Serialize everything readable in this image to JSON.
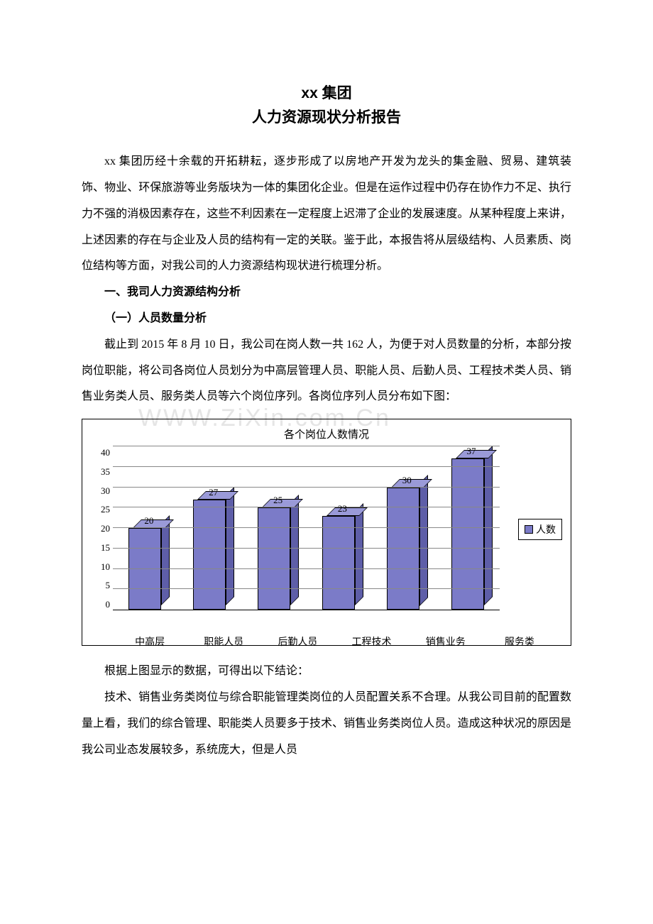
{
  "title_line1": "xx 集团",
  "title_line2": "人力资源现状分析报告",
  "intro_paragraph": "xx 集团历经十余载的开拓耕耘，逐步形成了以房地产开发为龙头的集金融、贸易、建筑装饰、物业、环保旅游等业务版块为一体的集团化企业。但是在运作过程中仍存在协作力不足、执行力不强的消极因素存在，这些不利因素在一定程度上迟滞了企业的发展速度。从某种程度上来讲，上述因素的存在与企业及人员的结构有一定的关联。鉴于此，本报告将从层级结构、人员素质、岗位结构等方面，对我公司的人力资源结构现状进行梳理分析。",
  "heading1": "一、我司人力资源结构分析",
  "heading2": "（一）人员数量分析",
  "para2": "截止到 2015 年 8 月 10 日，我公司在岗人数一共 162 人，为便于对人员数量的分析，本部分按岗位职能，将公司各岗位人员划分为中高层管理人员、职能人员、后勤人员、工程技术类人员、销售业务类人员、服务类人员等六个岗位序列。各岗位序列人员分布如下图：",
  "watermark_text": "WWW.ZiXin.com.Cn",
  "chart": {
    "type": "bar",
    "title": "各个岗位人数情况",
    "categories": [
      "中高层",
      "职能人员",
      "后勤人员",
      "工程技术",
      "销售业务",
      "服务类"
    ],
    "values": [
      20,
      27,
      25,
      23,
      30,
      37
    ],
    "bar_front_color": "#7b7bc8",
    "bar_top_color": "#9a9ad8",
    "bar_side_color": "#5e5ea8",
    "ylim_max": 40,
    "ytick_step": 5,
    "yticks": [
      "40",
      "35",
      "30",
      "25",
      "20",
      "15",
      "10",
      "5",
      "0"
    ],
    "grid_color": "#888888",
    "legend_label": "人数",
    "legend_swatch_color": "#7b7bc8",
    "background_color": "#ffffff",
    "title_fontsize": 15,
    "label_fontsize": 14,
    "value_fontsize": 13
  },
  "para3": "根据上图显示的数据，可得出以下结论：",
  "para4": "技术、销售业务类岗位与综合职能管理类岗位的人员配置关系不合理。从我公司目前的配置数量上看，我们的综合管理、职能类人员要多于技术、销售业务类岗位人员。造成这种状况的原因是我公司业态发展较多，系统庞大，但是人员"
}
